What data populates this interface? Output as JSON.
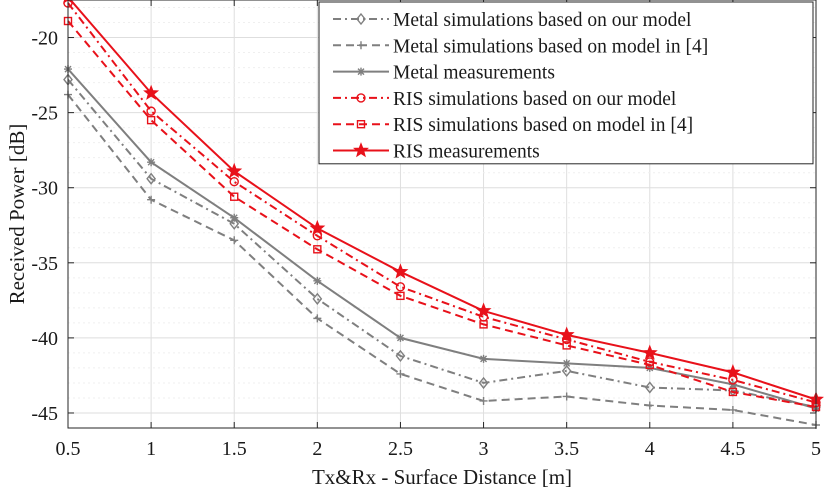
{
  "chart_data": {
    "type": "line",
    "title": "",
    "xlabel": "Tx&Rx - Surface Distance [m]",
    "ylabel": "Received Power [dB]",
    "xlim": [
      0.5,
      5
    ],
    "ylim": [
      -46,
      -17.5
    ],
    "x": [
      0.5,
      1,
      1.5,
      2,
      2.5,
      3,
      3.5,
      4,
      4.5,
      5
    ],
    "x_tick_labels": [
      "0.5",
      "1",
      "1.5",
      "2",
      "2.5",
      "3",
      "3.5",
      "4",
      "4.5",
      "5"
    ],
    "y_ticks": [
      -20,
      -25,
      -30,
      -35,
      -40,
      -45
    ],
    "y_tick_labels": [
      "-20",
      "-25",
      "-30",
      "-35",
      "-40",
      "-45"
    ],
    "grid": true,
    "legend_position": "top-right",
    "series": [
      {
        "name": "Metal simulations based on our model",
        "color": "#7f7f7f",
        "dash": "dashdot",
        "marker": "diamond",
        "values": [
          -22.8,
          -29.4,
          -32.4,
          -37.4,
          -41.2,
          -43.0,
          -42.2,
          -43.3,
          -43.5,
          -44.6
        ]
      },
      {
        "name": "Metal simulations based on model in [4]",
        "color": "#7f7f7f",
        "dash": "dashed",
        "marker": "plus",
        "values": [
          -23.8,
          -30.8,
          -33.5,
          -38.7,
          -42.4,
          -44.2,
          -43.9,
          -44.5,
          -44.8,
          -45.8
        ]
      },
      {
        "name": "Metal measurements",
        "color": "#7f7f7f",
        "dash": "solid",
        "marker": "asterisk",
        "values": [
          -22.1,
          -28.3,
          -32.0,
          -36.2,
          -40.0,
          -41.4,
          -41.7,
          -42.0,
          -43.1,
          -44.7
        ]
      },
      {
        "name": "RIS simulations based on our model",
        "color": "#e8111a",
        "dash": "dashdot",
        "marker": "circle",
        "values": [
          -17.7,
          -24.9,
          -29.6,
          -33.2,
          -36.6,
          -38.6,
          -40.1,
          -41.6,
          -42.8,
          -44.3
        ]
      },
      {
        "name": "RIS simulations based on model in [4]",
        "color": "#e8111a",
        "dash": "dashed",
        "marker": "square",
        "values": [
          -18.9,
          -25.5,
          -30.6,
          -34.1,
          -37.2,
          -39.1,
          -40.5,
          -41.8,
          -43.6,
          -44.6
        ]
      },
      {
        "name": "RIS measurements",
        "color": "#e8111a",
        "dash": "solid",
        "marker": "star",
        "values": [
          -17.3,
          -23.7,
          -28.9,
          -32.7,
          -35.6,
          -38.2,
          -39.8,
          -41.0,
          -42.3,
          -44.1
        ]
      }
    ]
  }
}
